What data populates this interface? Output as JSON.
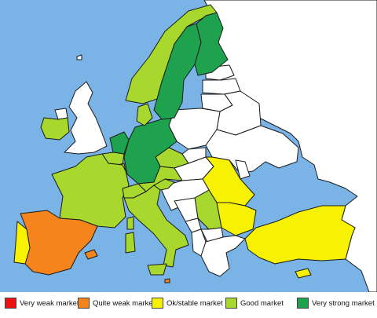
{
  "map": {
    "colors": {
      "sea": "#7ab4e6",
      "land": "#ffffff",
      "border": "#1a1a1a",
      "very_weak": "#ee1111",
      "quite_weak": "#f6841c",
      "ok_stable": "#f7f104",
      "good": "#a8d72e",
      "very_strong": "#1ea24d"
    },
    "countries": [
      {
        "name": "Portugal",
        "category": "ok_stable"
      },
      {
        "name": "Spain",
        "category": "quite_weak"
      },
      {
        "name": "France",
        "category": "good"
      },
      {
        "name": "Ireland",
        "category": "good"
      },
      {
        "name": "United Kingdom",
        "category": "none"
      },
      {
        "name": "Belgium",
        "category": "good"
      },
      {
        "name": "Netherlands",
        "category": "very_strong"
      },
      {
        "name": "Luxembourg",
        "category": "good"
      },
      {
        "name": "Germany",
        "category": "very_strong"
      },
      {
        "name": "Denmark",
        "category": "good"
      },
      {
        "name": "Norway",
        "category": "good"
      },
      {
        "name": "Sweden",
        "category": "very_strong"
      },
      {
        "name": "Finland",
        "category": "very_strong"
      },
      {
        "name": "Switzerland",
        "category": "good"
      },
      {
        "name": "Austria",
        "category": "good"
      },
      {
        "name": "Czech Republic",
        "category": "good"
      },
      {
        "name": "Italy",
        "category": "good"
      },
      {
        "name": "Slovenia",
        "category": "good"
      },
      {
        "name": "Serbia",
        "category": "good"
      },
      {
        "name": "Romania",
        "category": "ok_stable"
      },
      {
        "name": "Bulgaria",
        "category": "ok_stable"
      },
      {
        "name": "Turkey",
        "category": "ok_stable"
      },
      {
        "name": "Cyprus",
        "category": "ok_stable"
      },
      {
        "name": "Malta",
        "category": "quite_weak"
      },
      {
        "name": "Poland",
        "category": "none"
      },
      {
        "name": "Slovakia",
        "category": "none"
      },
      {
        "name": "Hungary",
        "category": "none"
      },
      {
        "name": "Croatia",
        "category": "none"
      },
      {
        "name": "Bosnia and Herzegovina",
        "category": "none"
      },
      {
        "name": "Montenegro",
        "category": "none"
      },
      {
        "name": "Albania",
        "category": "none"
      },
      {
        "name": "North Macedonia",
        "category": "none"
      },
      {
        "name": "Greece",
        "category": "none"
      },
      {
        "name": "Estonia",
        "category": "none"
      },
      {
        "name": "Latvia",
        "category": "none"
      },
      {
        "name": "Lithuania",
        "category": "none"
      },
      {
        "name": "Belarus",
        "category": "none"
      },
      {
        "name": "Ukraine",
        "category": "none"
      },
      {
        "name": "Moldova",
        "category": "none"
      },
      {
        "name": "Russia",
        "category": "none"
      }
    ]
  },
  "legend": {
    "items": [
      {
        "key": "very_weak",
        "label": "Very weak market",
        "color": "#ee1111"
      },
      {
        "key": "quite_weak",
        "label": "Quite weak market",
        "color": "#f6841c"
      },
      {
        "key": "ok_stable",
        "label": "Ok/stable market",
        "color": "#f7f104"
      },
      {
        "key": "good",
        "label": "Good market",
        "color": "#a8d72e"
      },
      {
        "key": "very_strong",
        "label": "Very strong market",
        "color": "#1ea24d"
      }
    ]
  }
}
